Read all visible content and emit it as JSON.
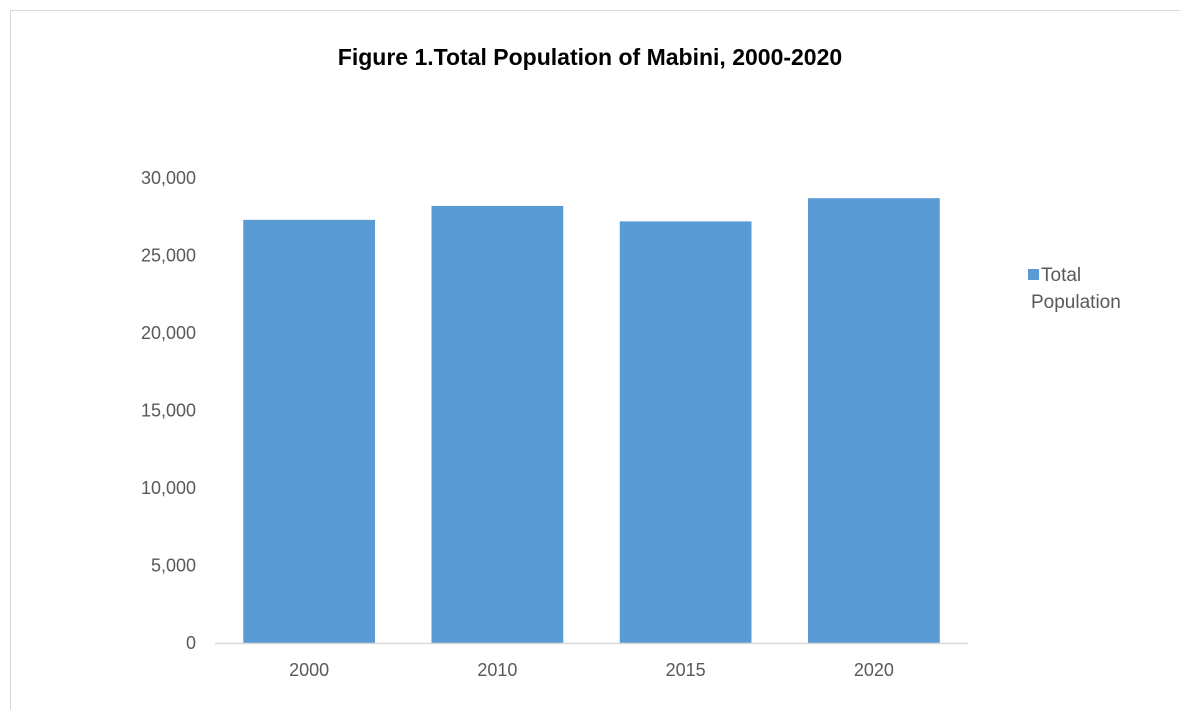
{
  "chart_data": {
    "type": "bar",
    "title": "Figure 1.Total Population of Mabini, 2000-2020",
    "categories": [
      "2000",
      "2010",
      "2015",
      "2020"
    ],
    "series": [
      {
        "name": "Total Population",
        "values": [
          27300,
          28200,
          27200,
          28700
        ],
        "color": "#5b9bd5"
      }
    ],
    "ylim": [
      0,
      30000
    ],
    "yticks": [
      0,
      5000,
      10000,
      15000,
      20000,
      25000,
      30000
    ],
    "ytick_labels": [
      "0",
      "5,000",
      "10,000",
      "15,000",
      "20,000",
      "25,000",
      "30,000"
    ],
    "grid": false,
    "legend": {
      "position": "right",
      "lines": [
        "Total",
        "Population"
      ]
    }
  }
}
